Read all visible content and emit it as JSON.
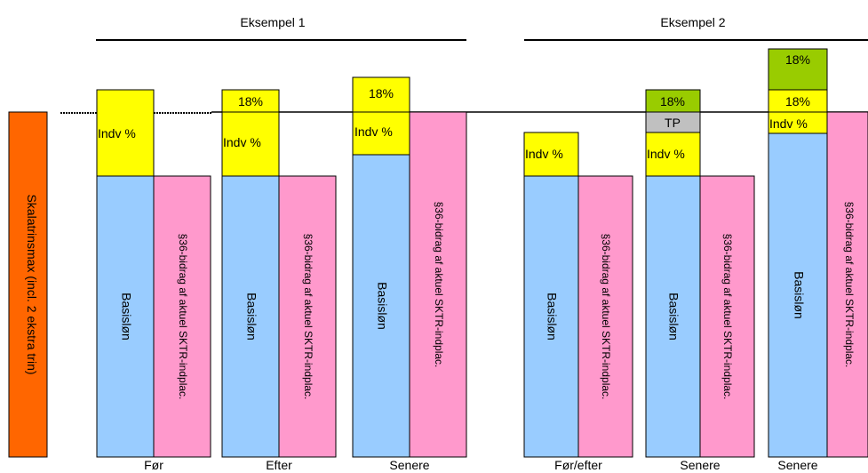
{
  "colors": {
    "basis": "#99ccff",
    "contrib": "#ff99cc",
    "indv": "#ffff00",
    "pct_green": "#99cc00",
    "tp": "#c0c0c0",
    "scale": "#ff6600",
    "stroke": "#000000"
  },
  "scale_label": "Skalatrinsmax (incl. 2 ekstra trin)",
  "groups": [
    {
      "id": "ex1",
      "title": "Eksempel 1"
    },
    {
      "id": "ex2",
      "title": "Eksempel 2"
    }
  ],
  "columns": [
    {
      "id": "foer",
      "label": "Før",
      "basis_label": "Basisløn",
      "contrib_label": "§36-bidrag af aktuel SKTR-indplac.",
      "segments": [
        {
          "kind": "indv",
          "text": "Indv %"
        }
      ]
    },
    {
      "id": "efter",
      "label": "Efter",
      "basis_label": "Basisløn",
      "contrib_label": "§36-bidrag af aktuel SKTR-indplac.",
      "segments": [
        {
          "kind": "indv",
          "text": "Indv %"
        },
        {
          "kind": "pct_yellow",
          "text": "18%"
        }
      ]
    },
    {
      "id": "senere1",
      "label": "Senere",
      "basis_label": "Basisløn",
      "contrib_label": "§36-bidrag af aktuel SKTR-indplac.",
      "segments": [
        {
          "kind": "indv",
          "text": "Indv %"
        },
        {
          "kind": "pct_yellow",
          "text": "18%"
        }
      ]
    },
    {
      "id": "foer_efter",
      "label": "Før/efter",
      "basis_label": "Basisløn",
      "contrib_label": "§36-bidrag af aktuel SKTR-indplac.",
      "segments": [
        {
          "kind": "indv",
          "text": "Indv %"
        }
      ]
    },
    {
      "id": "senere2",
      "label": "Senere",
      "basis_label": "Basisløn",
      "contrib_label": "§36-bidrag af aktuel SKTR-indplac.",
      "segments": [
        {
          "kind": "indv",
          "text": "Indv %"
        },
        {
          "kind": "tp",
          "text": "TP"
        },
        {
          "kind": "pct_green",
          "text": "18%"
        }
      ]
    },
    {
      "id": "senere3",
      "label": "Senere",
      "basis_label": "Basisløn",
      "contrib_label": "§36-bidrag af aktuel SKTR-indplac.",
      "segments": [
        {
          "kind": "indv",
          "text": "Indv %"
        },
        {
          "kind": "pct_yellow",
          "text": "18%"
        },
        {
          "kind": "pct_green",
          "text": "18%"
        }
      ]
    }
  ]
}
